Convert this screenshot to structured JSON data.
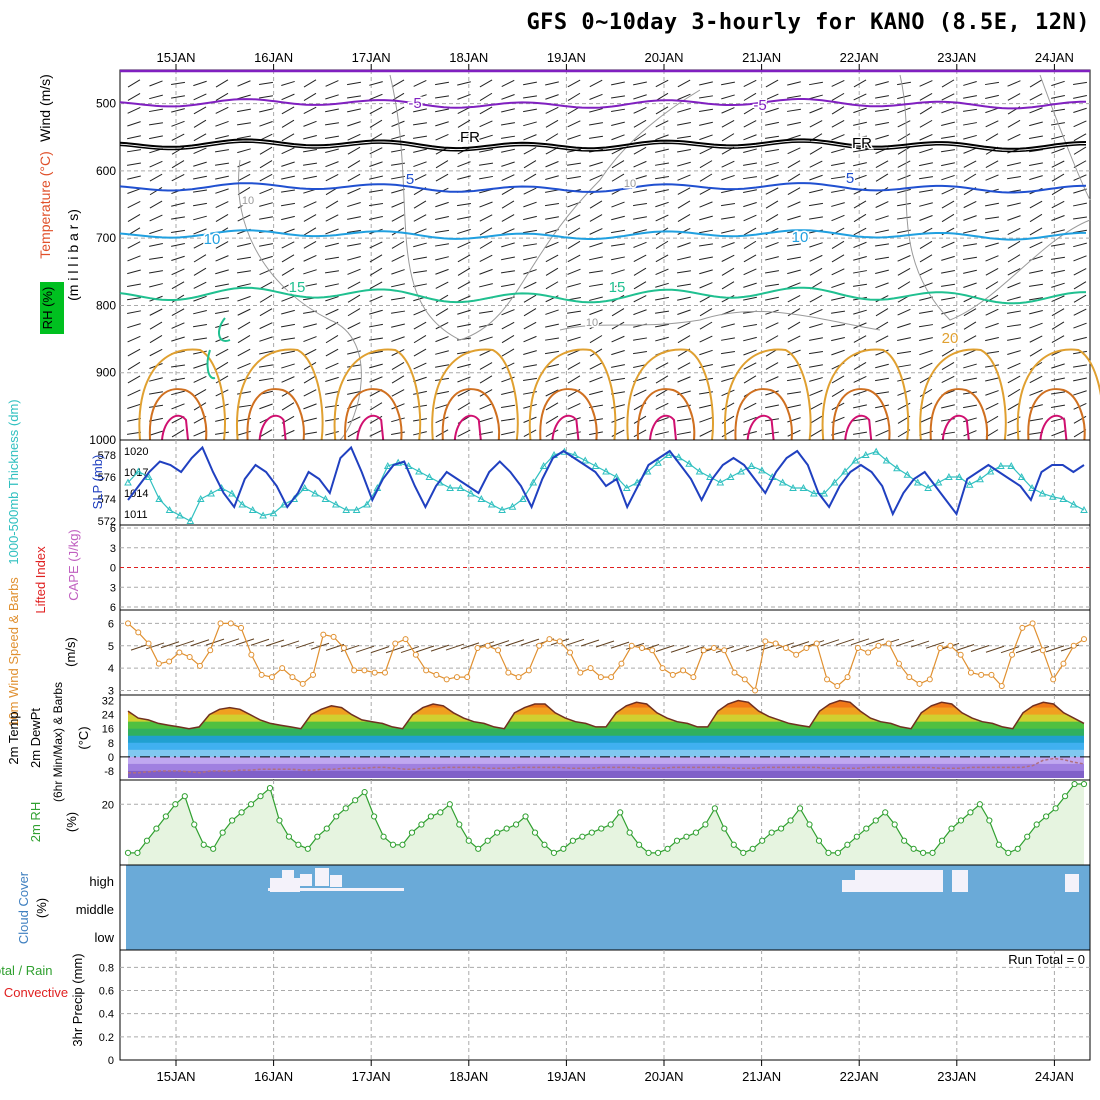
{
  "title": "GFS 0~10day 3-hourly for KANO (8.5E, 12N)",
  "colors": {
    "wind_label": "#000000",
    "temperature": "#e0502a",
    "rh_bg": "#00c020",
    "thickness": "#30c0c0",
    "slp": "#2040c0",
    "lifted_index": "#e02020",
    "cape": "#c060c0",
    "wind10": "#e09030",
    "temp_rh": "#30a030",
    "cloud": "#4080c0",
    "cloud_fill": "#6aaad8",
    "precip_total": "#30a030",
    "precip_conv": "#e02020"
  },
  "chart_data": [
    {
      "panel": "upper_air",
      "type": "contour",
      "ylabel_parts": [
        "Wind (m/s)",
        "Temperature (°C)",
        "RH (%)"
      ],
      "ylabel_units": "(m i l l i b a r s)",
      "yticks": [
        "500",
        "600",
        "700",
        "800",
        "900",
        "1000"
      ],
      "ylim": [
        450,
        1000
      ],
      "contour_labels": [
        {
          "text": "-5",
          "color": "#8020c0",
          "level": -5
        },
        {
          "text": "-5",
          "color": "#8020c0",
          "level": -5
        },
        {
          "text": "FR",
          "color": "#000000",
          "level": 0
        },
        {
          "text": "FR",
          "color": "#000000",
          "level": 0
        },
        {
          "text": "5",
          "color": "#2050d0",
          "level": 5
        },
        {
          "text": "5",
          "color": "#2050d0",
          "level": 5
        },
        {
          "text": "10",
          "color": "#20a0e0",
          "level": 10
        },
        {
          "text": "10",
          "color": "#20a0e0",
          "level": 10
        },
        {
          "text": "15",
          "color": "#20c090",
          "level": 15
        },
        {
          "text": "15",
          "color": "#20c090",
          "level": 15
        },
        {
          "text": "20",
          "color": "#e0a030",
          "level": 20
        },
        {
          "text": "10",
          "color": "#999999",
          "level": 10
        },
        {
          "text": "10",
          "color": "#999999",
          "level": 10
        },
        {
          "text": "10",
          "color": "#999999",
          "level": 10
        }
      ],
      "isotherm_pressure_mb": [
        {
          "level": -5,
          "p": 500
        },
        {
          "level": 0,
          "p": 560
        },
        {
          "level": 5,
          "p": 625
        },
        {
          "level": 10,
          "p": 695
        },
        {
          "level": 15,
          "p": 785
        }
      ]
    },
    {
      "panel": "thickness_slp",
      "type": "line",
      "ylabel_left": "1000-500mb Thickness (dm)",
      "ylabel_right": "SLP (mb)",
      "yticks_left": [
        "578",
        "576",
        "574",
        "572"
      ],
      "yticks_right": [
        "1020",
        "1017",
        "1014",
        "1011"
      ],
      "ylim_left": [
        572,
        579
      ],
      "ylim_right": [
        1010,
        1021
      ],
      "series": [
        {
          "name": "1000-500mb Thickness",
          "axis": "left",
          "values": [
            575.5,
            576.5,
            576,
            574,
            573,
            572.5,
            572,
            574,
            574.5,
            575,
            574.5,
            573.5,
            573,
            572.5,
            572.7,
            573.5,
            574,
            575,
            574.5,
            574,
            573.5,
            573,
            573,
            573.5,
            575,
            577,
            577.3,
            577,
            576.5,
            576,
            575.5,
            575,
            575,
            574.5,
            574,
            573.5,
            573,
            573.3,
            574,
            575.5,
            577,
            578,
            578.3,
            578,
            577.5,
            577,
            576.5,
            576,
            575,
            575.5,
            576.5,
            577.3,
            578,
            577.8,
            577.2,
            576.5,
            576,
            575.5,
            576,
            576.5,
            577,
            576.6,
            576,
            575.5,
            575,
            575,
            574.5,
            574.5,
            575.5,
            576.5,
            577.5,
            578,
            578.3,
            577.5,
            576.8,
            576.2,
            575.5,
            575,
            575.5,
            576,
            576,
            575.3,
            575.8,
            576.5,
            577,
            577,
            576,
            575,
            574.5,
            574.2,
            574,
            573.5,
            573
          ]
        },
        {
          "name": "SLP",
          "axis": "right",
          "values": [
            1013,
            1015,
            1017,
            1018.5,
            1018,
            1017,
            1019,
            1020.5,
            1017,
            1014,
            1012,
            1016,
            1018,
            1017,
            1015,
            1012,
            1014,
            1017,
            1016,
            1014,
            1019,
            1020.5,
            1017,
            1013,
            1016,
            1018,
            1018.5,
            1015,
            1012,
            1015,
            1017,
            1016,
            1015,
            1014,
            1017,
            1018.5,
            1017,
            1015,
            1012,
            1016,
            1019,
            1020,
            1019,
            1018,
            1017,
            1015,
            1016,
            1012,
            1015,
            1018,
            1019,
            1020,
            1018,
            1016,
            1013,
            1016,
            1018,
            1019,
            1018,
            1016,
            1014,
            1017,
            1019,
            1020,
            1018,
            1014,
            1012,
            1015,
            1017,
            1018,
            1017,
            1015,
            1011,
            1014,
            1016,
            1017,
            1015,
            1013,
            1011,
            1016,
            1017,
            1018,
            1017,
            1016,
            1015,
            1013,
            1017,
            1018,
            1018,
            1017,
            1018
          ]
        }
      ]
    },
    {
      "panel": "stability",
      "type": "line",
      "ylabel_left": "Lifted Index",
      "ylabel_right": "CAPE (J/kg)",
      "yticks": [
        "-6",
        "-3",
        "0",
        "3",
        "6"
      ],
      "ylim": [
        -6,
        6
      ],
      "series": []
    },
    {
      "panel": "wind10m",
      "type": "line",
      "ylabel": "10m Wind Speed & Barbs",
      "ylabel_units": "(m/s)",
      "yticks": [
        "6",
        "5",
        "4",
        "3"
      ],
      "ylim": [
        2.8,
        6.6
      ],
      "series": [
        {
          "name": "10m Wind Speed",
          "values": [
            6,
            5.6,
            5.1,
            4.2,
            4.3,
            4.7,
            4.5,
            4.1,
            4.8,
            6,
            6,
            5.8,
            4.6,
            3.7,
            3.6,
            4,
            3.6,
            3.3,
            3.7,
            5.5,
            5.4,
            4.9,
            3.9,
            3.9,
            3.8,
            3.8,
            5.1,
            5.3,
            4.6,
            3.9,
            3.7,
            3.5,
            3.6,
            3.6,
            4.9,
            5,
            4.8,
            3.8,
            3.6,
            3.9,
            5,
            5.3,
            5.2,
            4.7,
            3.8,
            4,
            3.6,
            3.6,
            4.2,
            5,
            4.9,
            4.8,
            4,
            3.7,
            3.9,
            3.6,
            4.8,
            4.9,
            4.8,
            3.8,
            3.5,
            3,
            5.2,
            5.1,
            4.9,
            4.6,
            4.9,
            5.1,
            3.5,
            3.2,
            3.6,
            4.9,
            4.7,
            5,
            5.1,
            4.2,
            3.6,
            3.3,
            3.5,
            4.9,
            5,
            4.6,
            3.8,
            3.7,
            3.7,
            3.2,
            4.6,
            5.8,
            6,
            4.8,
            3.5,
            4.2,
            5,
            5.3
          ]
        }
      ]
    },
    {
      "panel": "temp_dewpt",
      "type": "area",
      "ylabel_parts": [
        "2m Temp",
        "2m DewPt",
        "(6hr Min/Max) & Barbs"
      ],
      "ylabel_units": "(°C)",
      "yticks": [
        "32",
        "24",
        "16",
        "8",
        "0",
        "-8"
      ],
      "ylim": [
        -12,
        34
      ],
      "series": [
        {
          "name": "2m Temp",
          "values": [
            26,
            22,
            21,
            19,
            18,
            17,
            16,
            17,
            24,
            27,
            28,
            27,
            24,
            21,
            19,
            18,
            17,
            16,
            24,
            27,
            29,
            28,
            24,
            21,
            20,
            19,
            17,
            16,
            24,
            28,
            30,
            29,
            25,
            22,
            20,
            19,
            17,
            16,
            25,
            28,
            30,
            30,
            25,
            22,
            20,
            19,
            17,
            17,
            25,
            29,
            31,
            30,
            25,
            22,
            20,
            19,
            17,
            17,
            26,
            30,
            32,
            31,
            26,
            23,
            21,
            19,
            18,
            17,
            26,
            30,
            32,
            31,
            26,
            22,
            20,
            19,
            17,
            16,
            25,
            29,
            31,
            30,
            25,
            22,
            20,
            19,
            17,
            16,
            25,
            29,
            31,
            30,
            25,
            22,
            19
          ]
        },
        {
          "name": "2m DewPt",
          "values": [
            -9,
            -9,
            -8.5,
            -8,
            -8,
            -8,
            -8.5,
            -9,
            -8,
            -8,
            -8,
            -7.5,
            -7.5,
            -7,
            -7,
            -7,
            -7,
            -7.5,
            -7.5,
            -7,
            -7,
            -6.5,
            -6.5,
            -6.5,
            -6,
            -6,
            -6.5,
            -7,
            -7,
            -6.5,
            -6.5,
            -6,
            -6,
            -6,
            -6,
            -6.5,
            -6.5,
            -6.5,
            -6,
            -6,
            -6,
            -6,
            -6,
            -6.5,
            -6.5,
            -6.5,
            -6,
            -6,
            -6,
            -6,
            -6.5,
            -6.5,
            -6.5,
            -6,
            -6,
            -6,
            -6,
            -6,
            -6,
            -6.5,
            -6.5,
            -6.5,
            -6,
            -6,
            -6,
            -6,
            -6,
            -6,
            -6.5,
            -6.5,
            -6.5,
            -6.5,
            -6,
            -6,
            -6,
            -6,
            -6,
            -6,
            -6,
            -6.5,
            -6.5,
            -6.5,
            -6,
            -6,
            -6,
            -6,
            -6,
            -6,
            -5,
            -2,
            -1,
            -1.5,
            -3,
            -4
          ]
        }
      ]
    },
    {
      "panel": "rh2m",
      "type": "line",
      "ylabel": "2m RH",
      "ylabel_units": "(%)",
      "yticks": [
        "20"
      ],
      "ylim": [
        5,
        26
      ],
      "series": [
        {
          "name": "2m RH",
          "values": [
            8,
            8,
            11,
            14,
            17,
            20,
            22,
            15,
            10,
            9,
            13,
            16,
            18,
            20,
            22,
            24,
            16,
            12,
            10,
            9,
            12,
            14,
            17,
            19,
            21,
            23,
            17,
            12,
            10,
            10,
            13,
            15,
            17,
            18,
            20,
            15,
            11,
            9,
            11,
            13,
            14,
            15,
            17,
            13,
            10,
            8,
            9,
            11,
            12,
            13,
            14,
            15,
            18,
            13,
            10,
            8,
            8,
            9,
            11,
            12,
            13,
            15,
            19,
            14,
            10,
            8,
            9,
            11,
            13,
            14,
            16,
            19,
            15,
            11,
            8,
            8,
            10,
            12,
            14,
            16,
            18,
            15,
            11,
            9,
            8,
            8,
            11,
            14,
            16,
            18,
            20,
            16,
            10,
            8,
            9,
            12,
            15,
            17,
            19,
            22,
            25,
            25
          ]
        }
      ]
    },
    {
      "panel": "cloud_cover",
      "type": "heatmap",
      "ylabel": "Cloud Cover",
      "ylabel_units": "(%)",
      "yticks": [
        "high",
        "middle",
        "low"
      ],
      "series": []
    },
    {
      "panel": "precip",
      "type": "bar",
      "ylabel_parts": [
        "Total / Rain",
        "Convective",
        "3hr Precip (mm)"
      ],
      "run_total_label": "Run Total = 0",
      "yticks": [
        "0.8",
        "0.6",
        "0.4",
        "0.2",
        "0"
      ],
      "ylim": [
        0,
        0.95
      ],
      "series": []
    }
  ],
  "date_axis": {
    "ticks": [
      "15JAN",
      "16JAN",
      "17JAN",
      "18JAN",
      "19JAN",
      "20JAN",
      "21JAN",
      "22JAN",
      "23JAN",
      "24JAN"
    ]
  }
}
